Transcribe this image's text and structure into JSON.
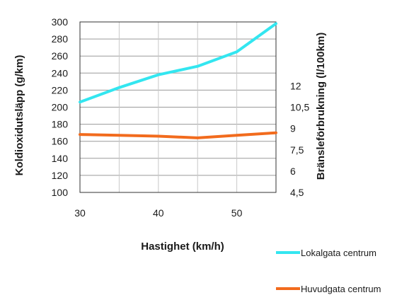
{
  "chart_data": {
    "type": "line",
    "xlabel": "Hastighet (km/h)",
    "ylabel": "Koldioxidutsläpp (g/km)",
    "y2label": "Bränsleförbrukning (l/100km)",
    "xlim": [
      30,
      55
    ],
    "ylim": [
      100,
      300
    ],
    "y2lim": [
      4.5,
      16.5
    ],
    "x_ticks": [
      "30",
      "40",
      "50"
    ],
    "y_ticks": [
      "100",
      "120",
      "140",
      "160",
      "180",
      "200",
      "220",
      "240",
      "260",
      "280",
      "300"
    ],
    "y2_ticks": [
      "4,5",
      "6",
      "7,5",
      "9",
      "10,5",
      "12"
    ],
    "grid": true,
    "legend_position": "bottom-right",
    "series": [
      {
        "name": "Lokalgata centrum",
        "color": "#33e6f0",
        "x": [
          30,
          35,
          40,
          45,
          50,
          55
        ],
        "values": [
          206,
          223,
          238,
          248,
          265,
          298
        ]
      },
      {
        "name": "Huvudgata centrum",
        "color": "#f26b1d",
        "x": [
          30,
          35,
          40,
          45,
          50,
          55
        ],
        "values": [
          168,
          167,
          166,
          164,
          167,
          170
        ]
      }
    ]
  }
}
